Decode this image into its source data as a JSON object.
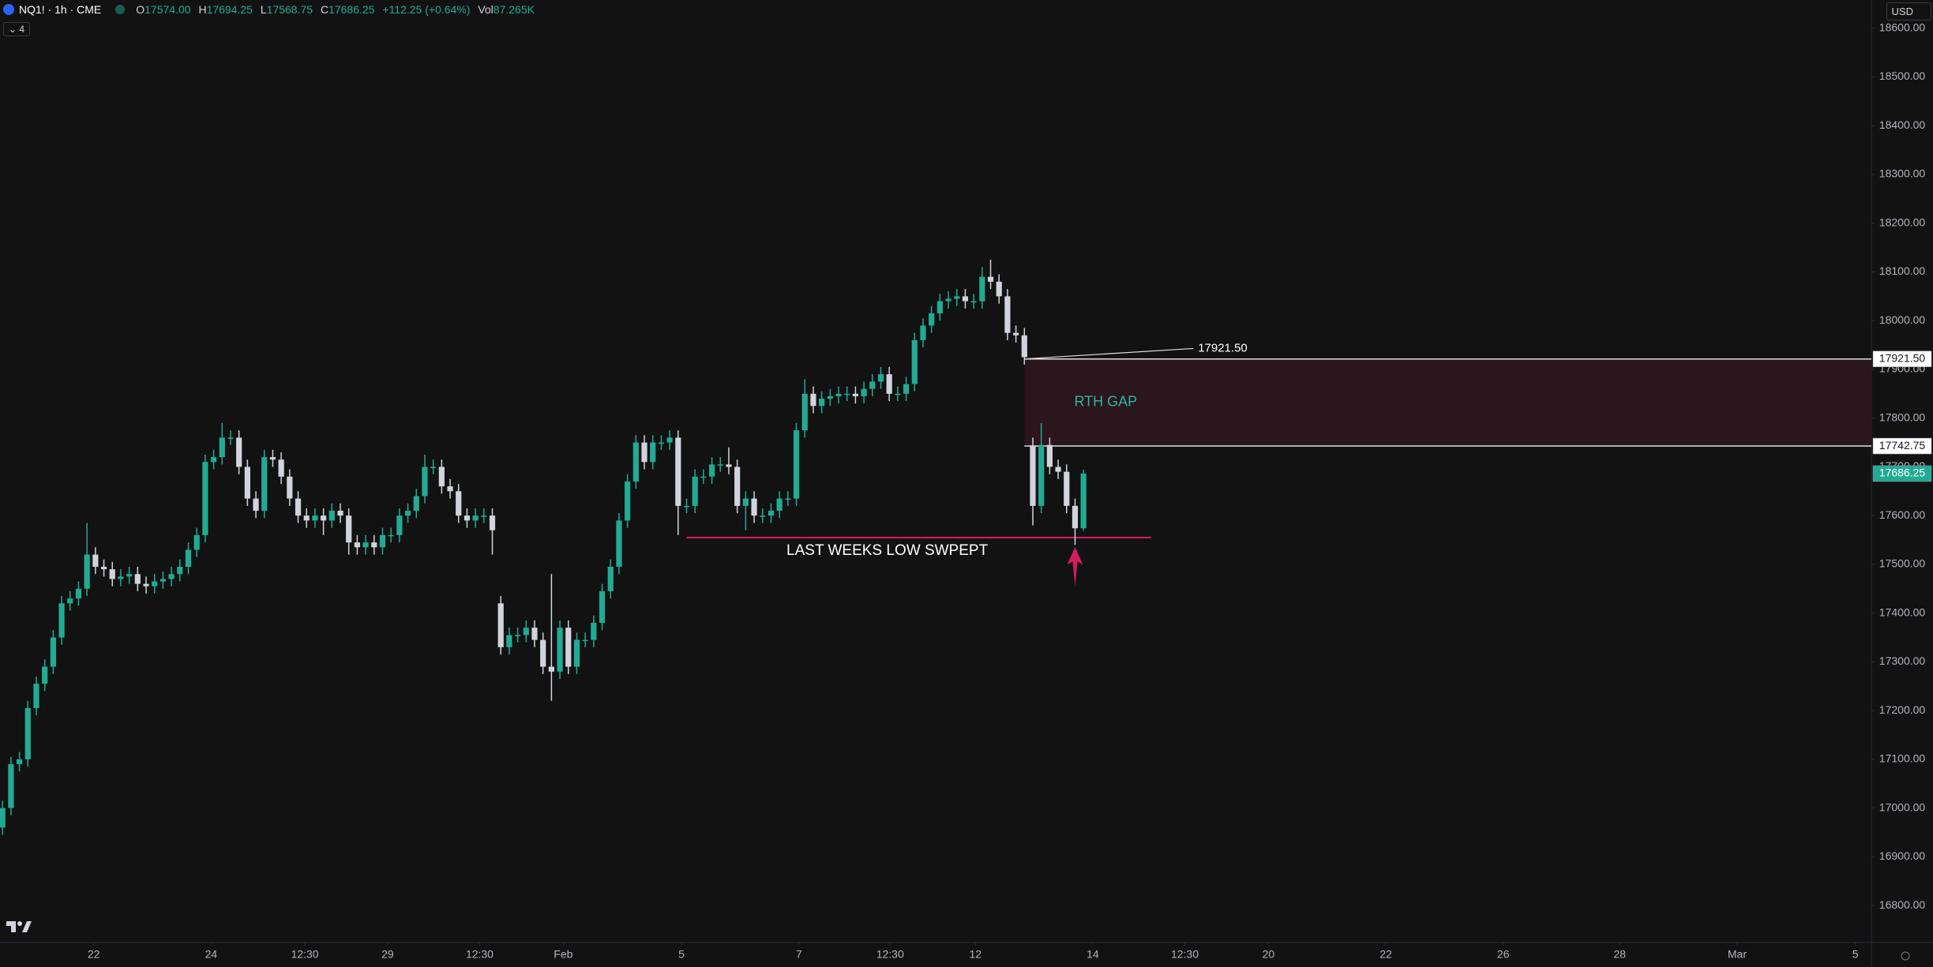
{
  "header": {
    "symbol": "NQ1! · 1h · CME",
    "open_label": "O",
    "open": "17574.00",
    "high_label": "H",
    "high": "17694.25",
    "low_label": "L",
    "low": "17568.75",
    "close_label": "C",
    "close": "17686.25",
    "change": "+112.25 (+0.64%)",
    "vol_label": "Vol",
    "vol": "87.265K",
    "indicators": "4",
    "currency": "USD"
  },
  "chart_data": {
    "type": "candlestick",
    "up_color": "#22ab94",
    "down_color": "#d1d4dc",
    "grid": false,
    "xlim": [
      -0.3,
      221.3
    ],
    "ylim": [
      16724,
      18658
    ],
    "xticks": [
      {
        "value": 10.8,
        "label": "22"
      },
      {
        "value": 24.7,
        "label": "24"
      },
      {
        "value": 35.8,
        "label": "12:30"
      },
      {
        "value": 45.6,
        "label": "29"
      },
      {
        "value": 56.5,
        "label": "12:30"
      },
      {
        "value": 66.4,
        "label": "Feb"
      },
      {
        "value": 80.4,
        "label": "5"
      },
      {
        "value": 94.3,
        "label": "7"
      },
      {
        "value": 105.1,
        "label": "12:30"
      },
      {
        "value": 115.2,
        "label": "12"
      },
      {
        "value": 129.1,
        "label": "14"
      },
      {
        "value": 140.0,
        "label": "12:30"
      },
      {
        "value": 149.9,
        "label": "20"
      },
      {
        "value": 163.8,
        "label": "22"
      },
      {
        "value": 177.7,
        "label": "26"
      },
      {
        "value": 191.5,
        "label": "28"
      },
      {
        "value": 205.4,
        "label": "Mar"
      },
      {
        "value": 219.4,
        "label": "5"
      }
    ],
    "yticks": [
      {
        "value": 18600,
        "label": "18600.00"
      },
      {
        "value": 18500,
        "label": "18500.00"
      },
      {
        "value": 18400,
        "label": "18400.00"
      },
      {
        "value": 18300,
        "label": "18300.00"
      },
      {
        "value": 18200,
        "label": "18200.00"
      },
      {
        "value": 18100,
        "label": "18100.00"
      },
      {
        "value": 18000,
        "label": "18000.00"
      },
      {
        "value": 17900,
        "label": "17900.00"
      },
      {
        "value": 17800,
        "label": "17800.00"
      },
      {
        "value": 17700,
        "label": "17700.00"
      },
      {
        "value": 17600,
        "label": "17600.00"
      },
      {
        "value": 17500,
        "label": "17500.00"
      },
      {
        "value": 17400,
        "label": "17400.00"
      },
      {
        "value": 17300,
        "label": "17300.00"
      },
      {
        "value": 17200,
        "label": "17200.00"
      },
      {
        "value": 17100,
        "label": "17100.00"
      },
      {
        "value": 17000,
        "label": "17000.00"
      },
      {
        "value": 16900,
        "label": "16900.00"
      },
      {
        "value": 16800,
        "label": "16800.00"
      }
    ],
    "open": [
      16960,
      17000,
      17090,
      17100,
      17205,
      17255,
      17290,
      17350,
      17420,
      17430,
      17450,
      17520,
      17495,
      17490,
      17470,
      17475,
      17480,
      17460,
      17455,
      17465,
      17470,
      17480,
      17495,
      17530,
      17560,
      17710,
      17720,
      17760,
      17760,
      17700,
      17635,
      17610,
      17720,
      17715,
      17680,
      17635,
      17600,
      17590,
      17600,
      17590,
      17610,
      17600,
      17545,
      17535,
      17545,
      17535,
      17560,
      17560,
      17600,
      17610,
      17640,
      17700,
      17700,
      17660,
      17650,
      17600,
      17590,
      17600,
      17600,
      17420,
      17330,
      17355,
      17355,
      17370,
      17345,
      17290,
      17280,
      17370,
      17290,
      17345,
      17345,
      17380,
      17445,
      17495,
      17590,
      17670,
      17750,
      17710,
      17750,
      17750,
      17760,
      17620,
      17620,
      17680,
      17680,
      17705,
      17705,
      17700,
      17620,
      17635,
      17600,
      17600,
      17610,
      17635,
      17635,
      17775,
      17850,
      17825,
      17840,
      17845,
      17850,
      17850,
      17845,
      17860,
      17875,
      17890,
      17850,
      17850,
      17870,
      17960,
      17990,
      18015,
      18040,
      18045,
      18050,
      18040,
      18040,
      18090,
      18080,
      18050,
      17975,
      17970,
      17742.75,
      17620,
      17745,
      17700,
      17690,
      17620,
      17574
    ],
    "high": [
      17015,
      17105,
      17115,
      17220,
      17270,
      17305,
      17365,
      17435,
      17445,
      17465,
      17585,
      17535,
      17510,
      17505,
      17490,
      17495,
      17495,
      17475,
      17480,
      17485,
      17495,
      17510,
      17545,
      17575,
      17725,
      17735,
      17790,
      17775,
      17775,
      17715,
      17650,
      17735,
      17735,
      17730,
      17695,
      17650,
      17615,
      17615,
      17615,
      17625,
      17625,
      17615,
      17560,
      17560,
      17560,
      17575,
      17575,
      17615,
      17625,
      17655,
      17725,
      17715,
      17715,
      17675,
      17665,
      17615,
      17615,
      17615,
      17615,
      17435,
      17370,
      17370,
      17385,
      17385,
      17360,
      17480,
      17385,
      17385,
      17360,
      17360,
      17395,
      17460,
      17510,
      17605,
      17685,
      17765,
      17765,
      17765,
      17765,
      17775,
      17775,
      17635,
      17695,
      17695,
      17720,
      17720,
      17740,
      17715,
      17650,
      17650,
      17615,
      17625,
      17650,
      17650,
      17790,
      17880,
      17865,
      17855,
      17860,
      17865,
      17865,
      17865,
      17875,
      17890,
      17905,
      17905,
      17865,
      17885,
      17975,
      18005,
      18030,
      18055,
      18060,
      18065,
      18065,
      18055,
      18110,
      18125,
      18095,
      18065,
      17990,
      17985,
      17760,
      17790,
      17760,
      17715,
      17705,
      17635,
      17694.25
    ],
    "low": [
      16945,
      16985,
      17075,
      17085,
      17190,
      17240,
      17275,
      17335,
      17405,
      17415,
      17435,
      17480,
      17475,
      17455,
      17455,
      17460,
      17445,
      17440,
      17440,
      17450,
      17455,
      17465,
      17480,
      17515,
      17545,
      17695,
      17705,
      17745,
      17685,
      17620,
      17595,
      17595,
      17700,
      17665,
      17620,
      17585,
      17575,
      17575,
      17560,
      17575,
      17585,
      17520,
      17520,
      17520,
      17520,
      17520,
      17545,
      17545,
      17585,
      17595,
      17625,
      17685,
      17645,
      17635,
      17585,
      17575,
      17575,
      17585,
      17520,
      17315,
      17315,
      17340,
      17340,
      17330,
      17275,
      17220,
      17265,
      17275,
      17275,
      17330,
      17330,
      17365,
      17430,
      17480,
      17575,
      17655,
      17695,
      17695,
      17735,
      17735,
      17560,
      17605,
      17605,
      17665,
      17665,
      17690,
      17685,
      17605,
      17570,
      17585,
      17585,
      17585,
      17595,
      17620,
      17620,
      17760,
      17810,
      17810,
      17825,
      17830,
      17835,
      17830,
      17830,
      17845,
      17860,
      17835,
      17835,
      17835,
      17855,
      17945,
      17975,
      18000,
      18025,
      18030,
      18025,
      18025,
      18025,
      18065,
      18035,
      17960,
      17955,
      17910,
      17580,
      17605,
      17685,
      17675,
      17605,
      17540,
      17568.75
    ],
    "close": [
      17000,
      17090,
      17100,
      17205,
      17255,
      17290,
      17350,
      17420,
      17430,
      17450,
      17520,
      17495,
      17490,
      17470,
      17475,
      17480,
      17460,
      17455,
      17465,
      17470,
      17480,
      17495,
      17530,
      17560,
      17710,
      17720,
      17760,
      17760,
      17700,
      17635,
      17610,
      17720,
      17715,
      17680,
      17635,
      17600,
      17590,
      17600,
      17590,
      17610,
      17600,
      17545,
      17535,
      17545,
      17535,
      17560,
      17560,
      17600,
      17610,
      17640,
      17700,
      17700,
      17660,
      17650,
      17600,
      17590,
      17600,
      17600,
      17570,
      17330,
      17355,
      17355,
      17370,
      17345,
      17290,
      17280,
      17370,
      17290,
      17345,
      17345,
      17380,
      17445,
      17495,
      17590,
      17670,
      17750,
      17710,
      17750,
      17750,
      17760,
      17620,
      17620,
      17680,
      17680,
      17705,
      17705,
      17700,
      17620,
      17635,
      17600,
      17600,
      17610,
      17635,
      17635,
      17775,
      17850,
      17825,
      17840,
      17845,
      17850,
      17850,
      17845,
      17860,
      17875,
      17890,
      17850,
      17850,
      17870,
      17960,
      17990,
      18015,
      18040,
      18045,
      18050,
      18040,
      18040,
      18090,
      18080,
      18050,
      17975,
      17970,
      17925,
      17620,
      17745,
      17700,
      17690,
      17620,
      17574,
      17686.25
    ],
    "annotations": {
      "gap": {
        "top": {
          "value": 17921.5,
          "label": "17921.50"
        },
        "bottom": {
          "value": 17742.75,
          "label": "17742.75"
        },
        "text": "RTH GAP",
        "start": 121,
        "color": "#2a161c",
        "text_color": "#2fb5a0"
      },
      "callout": {
        "start": 121,
        "end": 141,
        "end_value": 17943
      },
      "sweep": {
        "level": 17555,
        "start": 81,
        "end": 136,
        "text": "LAST WEEKS LOW SWPEPT",
        "color": "#d81b60"
      },
      "arrow": {
        "x": 127,
        "from": 17455,
        "to": 17535,
        "color": "#d81b60"
      }
    }
  }
}
